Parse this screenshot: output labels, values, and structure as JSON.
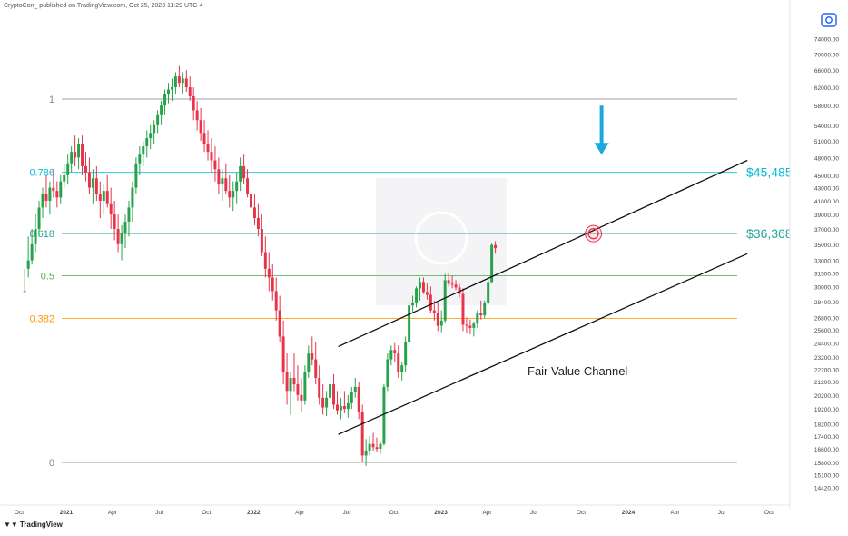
{
  "attribution": "CryptoCon_ published on TradingView.com, Oct 25, 2023 11:29 UTC-4",
  "brand": "TradingView",
  "colors": {
    "up": "#26a34a",
    "down": "#e8334a",
    "fib_786": "#00bcd4",
    "fib_618": "#26a69a",
    "fib_5": "#4caf50",
    "fib_382": "#ff9800",
    "fib_neutral": "#888888",
    "arrow": "#1ca8d8",
    "circle": "#e8334a"
  },
  "chart_data": {
    "type": "candlestick",
    "title": "",
    "scale": "log",
    "ylim": [
      14000,
      78000
    ],
    "price_axis_ticks": [
      "74000.00",
      "70000.00",
      "66000.00",
      "62000.00",
      "58000.00",
      "54000.00",
      "51000.00",
      "48000.00",
      "45000.00",
      "43000.00",
      "41000.00",
      "39000.00",
      "37000.00",
      "35000.00",
      "33000.00",
      "31500.00",
      "30000.00",
      "28400.00",
      "26800.00",
      "25600.00",
      "24400.00",
      "23200.00",
      "22200.00",
      "21200.00",
      "20200.00",
      "19200.00",
      "18200.00",
      "17400.00",
      "16600.00",
      "15800.00",
      "15100.00",
      "14420.00"
    ],
    "time_axis_ticks": [
      "Oct",
      "2021",
      "Apr",
      "Jul",
      "Oct",
      "2022",
      "Apr",
      "Jul",
      "Oct",
      "2023",
      "Apr",
      "Jul",
      "Oct",
      "2024",
      "Apr",
      "Jul",
      "Oct"
    ],
    "fib_levels": [
      {
        "ratio": "1",
        "price": 59400,
        "color": "#888888"
      },
      {
        "ratio": "0.786",
        "price": 45485,
        "color": "#00bcd4",
        "price_label": "$45,485"
      },
      {
        "ratio": "0.618",
        "price": 36368,
        "color": "#26a69a",
        "price_label": "$36,368"
      },
      {
        "ratio": "0.5",
        "price": 31200,
        "color": "#4caf50"
      },
      {
        "ratio": "0.382",
        "price": 26700,
        "color": "#ff9800"
      },
      {
        "ratio": "0",
        "price": 15800,
        "color": "#888888"
      }
    ],
    "channel": {
      "label": "Fair Value Channel",
      "upper": [
        {
          "date": "2022-06-15",
          "price": 24100
        },
        {
          "date": "2024-08-20",
          "price": 47500
        }
      ],
      "lower": [
        {
          "date": "2022-06-15",
          "price": 17500
        },
        {
          "date": "2024-08-20",
          "price": 33800
        }
      ]
    },
    "marker": {
      "date": "2023-10-25",
      "price": 36368
    },
    "arrow": {
      "date": "2023-11-10",
      "price_top": 58000,
      "price_bottom": 48500
    },
    "candles_weekly": [
      [
        29500,
        32000,
        29500,
        29500
      ],
      [
        32000,
        36000,
        31000,
        33000
      ],
      [
        33000,
        37000,
        32500,
        35000
      ],
      [
        35000,
        39000,
        34000,
        37000
      ],
      [
        37000,
        41000,
        36000,
        40000
      ],
      [
        40000,
        43000,
        38500,
        42000
      ],
      [
        42000,
        45000,
        40000,
        41000
      ],
      [
        41000,
        44000,
        39000,
        43000
      ],
      [
        43000,
        46000,
        41500,
        42500
      ],
      [
        42500,
        44000,
        40000,
        41500
      ],
      [
        41500,
        45000,
        40500,
        44000
      ],
      [
        44000,
        47000,
        43000,
        45000
      ],
      [
        45000,
        48500,
        43500,
        47000
      ],
      [
        47000,
        50000,
        45500,
        49000
      ],
      [
        49000,
        52000,
        46500,
        48000
      ],
      [
        48000,
        51500,
        46000,
        50500
      ],
      [
        50500,
        52000,
        45000,
        46500
      ],
      [
        46500,
        49000,
        44000,
        45500
      ],
      [
        45500,
        48000,
        42000,
        43000
      ],
      [
        43000,
        46000,
        40500,
        44500
      ],
      [
        44500,
        46500,
        41000,
        42000
      ],
      [
        42000,
        44000,
        38500,
        41000
      ],
      [
        41000,
        43500,
        39000,
        42500
      ],
      [
        42500,
        45000,
        40000,
        40500
      ],
      [
        40500,
        43000,
        37000,
        39000
      ],
      [
        39000,
        41000,
        35500,
        37000
      ],
      [
        37000,
        39000,
        34000,
        35000
      ],
      [
        35000,
        37500,
        33000,
        36500
      ],
      [
        36500,
        39000,
        34500,
        38000
      ],
      [
        38000,
        41000,
        36000,
        40000
      ],
      [
        40000,
        44000,
        38000,
        43000
      ],
      [
        43000,
        48000,
        42000,
        47000
      ],
      [
        47000,
        50000,
        45000,
        48500
      ],
      [
        48500,
        51000,
        46500,
        50000
      ],
      [
        50000,
        53000,
        48000,
        51500
      ],
      [
        51500,
        54000,
        49500,
        52500
      ],
      [
        52500,
        55000,
        50500,
        54000
      ],
      [
        54000,
        57000,
        52500,
        56000
      ],
      [
        56000,
        59000,
        54000,
        58000
      ],
      [
        58000,
        61500,
        56000,
        60500
      ],
      [
        60500,
        63000,
        58500,
        61500
      ],
      [
        61500,
        64000,
        59000,
        62000
      ],
      [
        62000,
        65500,
        60500,
        64500
      ],
      [
        64500,
        67000,
        62000,
        63000
      ],
      [
        63000,
        65500,
        60500,
        64000
      ],
      [
        64000,
        66000,
        61000,
        62000
      ],
      [
        62000,
        64500,
        59000,
        60000
      ],
      [
        60000,
        62000,
        55000,
        57000
      ],
      [
        57000,
        59000,
        53000,
        55000
      ],
      [
        55000,
        57500,
        51000,
        52500
      ],
      [
        52500,
        55000,
        49000,
        50500
      ],
      [
        50500,
        53000,
        47500,
        49000
      ],
      [
        49000,
        51500,
        45500,
        47500
      ],
      [
        47500,
        50000,
        44000,
        46000
      ],
      [
        46000,
        48000,
        42000,
        43500
      ],
      [
        43500,
        46000,
        41000,
        44500
      ],
      [
        44500,
        47000,
        42000,
        42500
      ],
      [
        42500,
        45000,
        40000,
        41500
      ],
      [
        41500,
        44000,
        39500,
        42500
      ],
      [
        42500,
        45500,
        40500,
        44000
      ],
      [
        44000,
        48000,
        42500,
        46500
      ],
      [
        46500,
        48500,
        43500,
        44500
      ],
      [
        44500,
        46000,
        41500,
        42000
      ],
      [
        42000,
        44500,
        39500,
        40000
      ],
      [
        40000,
        42000,
        37500,
        38500
      ],
      [
        38500,
        40500,
        36000,
        37000
      ],
      [
        37000,
        39000,
        33500,
        34000
      ],
      [
        34000,
        36000,
        31000,
        32000
      ],
      [
        32000,
        34000,
        29500,
        31000
      ],
      [
        31000,
        32500,
        28500,
        29500
      ],
      [
        29500,
        31000,
        26500,
        27500
      ],
      [
        27500,
        29000,
        24500,
        25000
      ],
      [
        25000,
        26500,
        21000,
        22000
      ],
      [
        22000,
        23500,
        19500,
        20500
      ],
      [
        20500,
        22000,
        18800,
        21500
      ],
      [
        21500,
        23500,
        20500,
        21000
      ],
      [
        21000,
        22500,
        19800,
        20200
      ],
      [
        20200,
        21500,
        19000,
        19800
      ],
      [
        19800,
        22500,
        19500,
        22000
      ],
      [
        22000,
        24200,
        21500,
        23500
      ],
      [
        23500,
        25000,
        22500,
        23000
      ],
      [
        23000,
        24500,
        21000,
        21500
      ],
      [
        21500,
        22500,
        19500,
        20000
      ],
      [
        20000,
        21000,
        18800,
        19300
      ],
      [
        19300,
        20500,
        18700,
        20000
      ],
      [
        20000,
        21500,
        19500,
        21000
      ],
      [
        21000,
        21800,
        19200,
        19500
      ],
      [
        19500,
        20500,
        18800,
        19100
      ],
      [
        19100,
        20000,
        18500,
        19400
      ],
      [
        19400,
        20500,
        18900,
        19200
      ],
      [
        19200,
        20200,
        18600,
        19600
      ],
      [
        19600,
        20800,
        19200,
        20400
      ],
      [
        20400,
        21500,
        20000,
        20800
      ],
      [
        20800,
        21200,
        18500,
        19000
      ],
      [
        19000,
        19500,
        15800,
        16200
      ],
      [
        16200,
        17200,
        15600,
        16500
      ],
      [
        16500,
        17400,
        16200,
        16900
      ],
      [
        16900,
        17600,
        16500,
        16700
      ],
      [
        16700,
        17300,
        16400,
        16600
      ],
      [
        16600,
        17100,
        16300,
        16900
      ],
      [
        16900,
        21000,
        16800,
        20800
      ],
      [
        20800,
        23500,
        20500,
        23000
      ],
      [
        23000,
        24200,
        22500,
        23800
      ],
      [
        23800,
        24400,
        22800,
        23500
      ],
      [
        23500,
        24200,
        21500,
        22000
      ],
      [
        22000,
        22800,
        21300,
        22500
      ],
      [
        22500,
        25000,
        22000,
        24500
      ],
      [
        24500,
        28500,
        24200,
        28000
      ],
      [
        28000,
        29000,
        27200,
        28300
      ],
      [
        28300,
        30000,
        27800,
        29800
      ],
      [
        29800,
        31000,
        28500,
        30500
      ],
      [
        30500,
        31000,
        29200,
        29400
      ],
      [
        29400,
        30400,
        28600,
        29100
      ],
      [
        29100,
        30000,
        27200,
        27500
      ],
      [
        27500,
        28500,
        26500,
        27200
      ],
      [
        27200,
        28200,
        25500,
        26000
      ],
      [
        26000,
        27500,
        25400,
        26500
      ],
      [
        26500,
        31400,
        26300,
        30700
      ],
      [
        30700,
        31500,
        30000,
        30300
      ],
      [
        30300,
        31200,
        29800,
        30200
      ],
      [
        30200,
        30700,
        29600,
        29900
      ],
      [
        29900,
        30300,
        28800,
        29200
      ],
      [
        29200,
        29800,
        25500,
        26100
      ],
      [
        26100,
        26800,
        25300,
        26000
      ],
      [
        26000,
        26600,
        25200,
        25800
      ],
      [
        25800,
        26400,
        25000,
        26200
      ],
      [
        26200,
        27500,
        25800,
        27200
      ],
      [
        27200,
        28500,
        26600,
        27000
      ],
      [
        27000,
        28500,
        26700,
        28300
      ],
      [
        28300,
        31000,
        28100,
        30500
      ],
      [
        30500,
        35200,
        30300,
        34900
      ],
      [
        34900,
        35400,
        33800,
        34500
      ]
    ]
  }
}
